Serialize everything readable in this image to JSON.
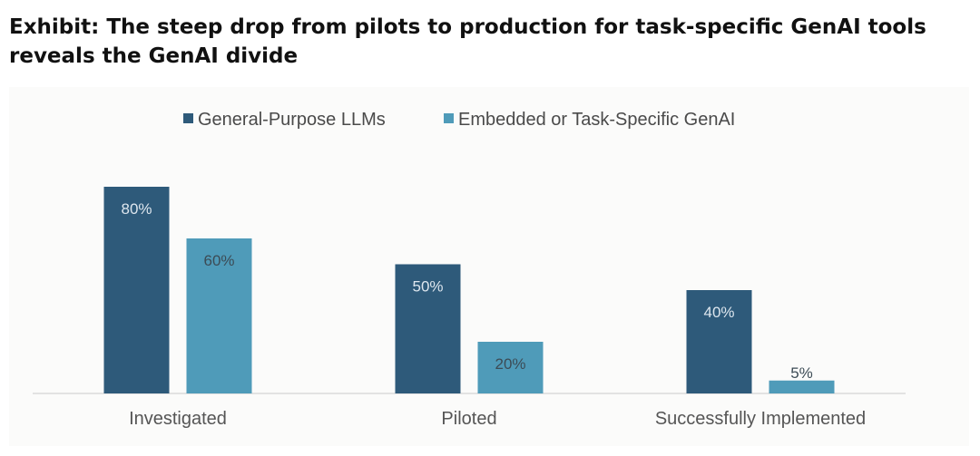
{
  "title": "Exhibit: The steep drop from pilots to production for task-specific GenAI tools reveals the GenAI divide",
  "chart_data": {
    "type": "bar",
    "title": "Exhibit: The steep drop from pilots to production for task-specific GenAI tools reveals the GenAI divide",
    "xlabel": "",
    "ylabel": "",
    "ylim": [
      0,
      100
    ],
    "grid": false,
    "legend_position": "top",
    "categories": [
      "Investigated",
      "Piloted",
      "Successfully Implemented"
    ],
    "series": [
      {
        "name": "General-Purpose LLMs",
        "color": "#2e5a7a",
        "values": [
          80,
          50,
          40
        ],
        "labels": [
          "80%",
          "50%",
          "40%"
        ],
        "label_color": "#dde6ee",
        "label_position": "inside-top"
      },
      {
        "name": "Embedded or Task-Specific GenAI",
        "color": "#4f9bb9",
        "values": [
          60,
          20,
          5
        ],
        "labels": [
          "60%",
          "20%",
          "5%"
        ],
        "label_color": "#3c4b55",
        "label_position": "inside-top"
      }
    ],
    "axis_color": "#d9d9d9"
  }
}
